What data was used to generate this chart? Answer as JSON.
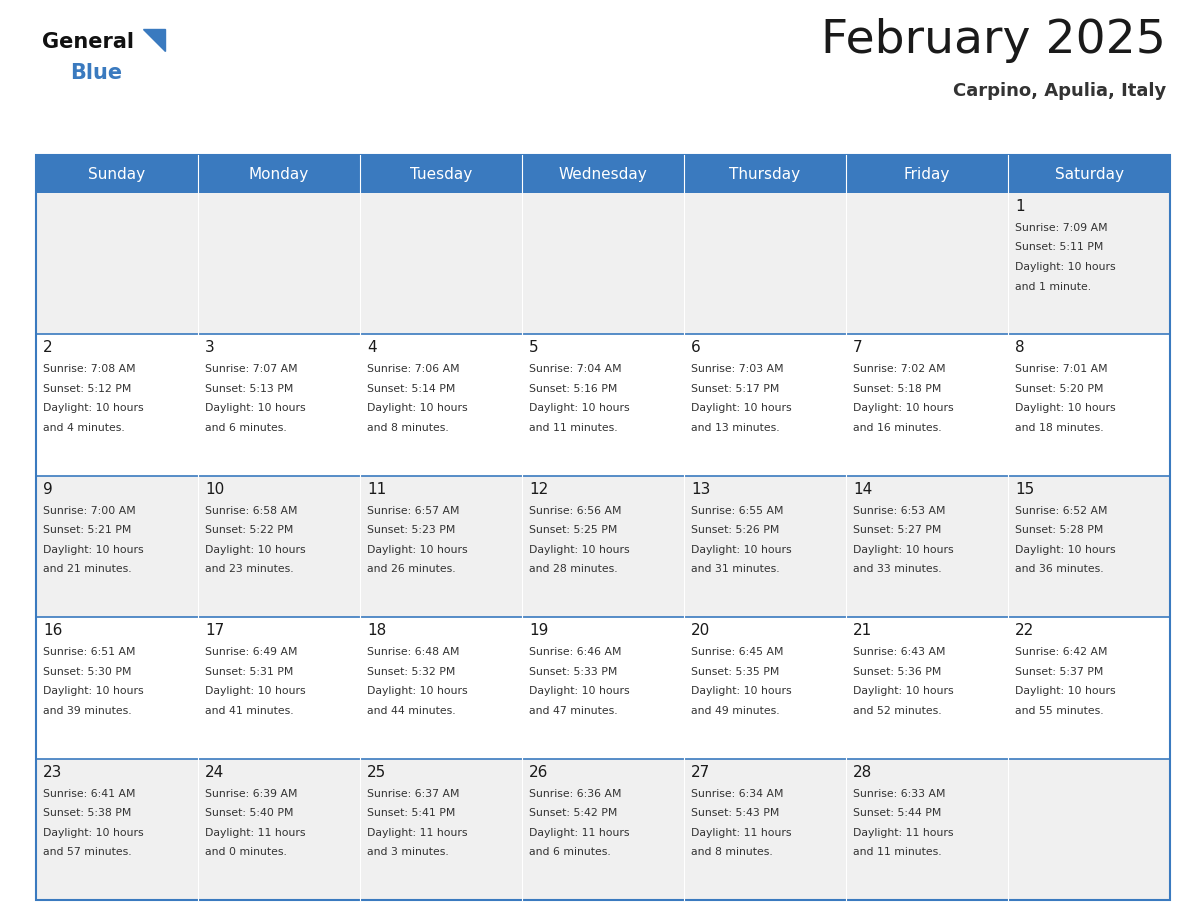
{
  "title": "February 2025",
  "subtitle": "Carpino, Apulia, Italy",
  "header_color": "#3a7abf",
  "header_text_color": "#ffffff",
  "cell_bg_even": "#f0f0f0",
  "cell_bg_odd": "#ffffff",
  "border_color": "#3a7abf",
  "days_of_week": [
    "Sunday",
    "Monday",
    "Tuesday",
    "Wednesday",
    "Thursday",
    "Friday",
    "Saturday"
  ],
  "title_color": "#1a1a1a",
  "subtitle_color": "#333333",
  "day_number_color": "#1a1a1a",
  "cell_text_color": "#333333",
  "calendar": [
    [
      null,
      null,
      null,
      null,
      null,
      null,
      {
        "day": 1,
        "sunrise": "7:09 AM",
        "sunset": "5:11 PM",
        "daylight": "10 hours",
        "daylight2": "and 1 minute."
      }
    ],
    [
      {
        "day": 2,
        "sunrise": "7:08 AM",
        "sunset": "5:12 PM",
        "daylight": "10 hours",
        "daylight2": "and 4 minutes."
      },
      {
        "day": 3,
        "sunrise": "7:07 AM",
        "sunset": "5:13 PM",
        "daylight": "10 hours",
        "daylight2": "and 6 minutes."
      },
      {
        "day": 4,
        "sunrise": "7:06 AM",
        "sunset": "5:14 PM",
        "daylight": "10 hours",
        "daylight2": "and 8 minutes."
      },
      {
        "day": 5,
        "sunrise": "7:04 AM",
        "sunset": "5:16 PM",
        "daylight": "10 hours",
        "daylight2": "and 11 minutes."
      },
      {
        "day": 6,
        "sunrise": "7:03 AM",
        "sunset": "5:17 PM",
        "daylight": "10 hours",
        "daylight2": "and 13 minutes."
      },
      {
        "day": 7,
        "sunrise": "7:02 AM",
        "sunset": "5:18 PM",
        "daylight": "10 hours",
        "daylight2": "and 16 minutes."
      },
      {
        "day": 8,
        "sunrise": "7:01 AM",
        "sunset": "5:20 PM",
        "daylight": "10 hours",
        "daylight2": "and 18 minutes."
      }
    ],
    [
      {
        "day": 9,
        "sunrise": "7:00 AM",
        "sunset": "5:21 PM",
        "daylight": "10 hours",
        "daylight2": "and 21 minutes."
      },
      {
        "day": 10,
        "sunrise": "6:58 AM",
        "sunset": "5:22 PM",
        "daylight": "10 hours",
        "daylight2": "and 23 minutes."
      },
      {
        "day": 11,
        "sunrise": "6:57 AM",
        "sunset": "5:23 PM",
        "daylight": "10 hours",
        "daylight2": "and 26 minutes."
      },
      {
        "day": 12,
        "sunrise": "6:56 AM",
        "sunset": "5:25 PM",
        "daylight": "10 hours",
        "daylight2": "and 28 minutes."
      },
      {
        "day": 13,
        "sunrise": "6:55 AM",
        "sunset": "5:26 PM",
        "daylight": "10 hours",
        "daylight2": "and 31 minutes."
      },
      {
        "day": 14,
        "sunrise": "6:53 AM",
        "sunset": "5:27 PM",
        "daylight": "10 hours",
        "daylight2": "and 33 minutes."
      },
      {
        "day": 15,
        "sunrise": "6:52 AM",
        "sunset": "5:28 PM",
        "daylight": "10 hours",
        "daylight2": "and 36 minutes."
      }
    ],
    [
      {
        "day": 16,
        "sunrise": "6:51 AM",
        "sunset": "5:30 PM",
        "daylight": "10 hours",
        "daylight2": "and 39 minutes."
      },
      {
        "day": 17,
        "sunrise": "6:49 AM",
        "sunset": "5:31 PM",
        "daylight": "10 hours",
        "daylight2": "and 41 minutes."
      },
      {
        "day": 18,
        "sunrise": "6:48 AM",
        "sunset": "5:32 PM",
        "daylight": "10 hours",
        "daylight2": "and 44 minutes."
      },
      {
        "day": 19,
        "sunrise": "6:46 AM",
        "sunset": "5:33 PM",
        "daylight": "10 hours",
        "daylight2": "and 47 minutes."
      },
      {
        "day": 20,
        "sunrise": "6:45 AM",
        "sunset": "5:35 PM",
        "daylight": "10 hours",
        "daylight2": "and 49 minutes."
      },
      {
        "day": 21,
        "sunrise": "6:43 AM",
        "sunset": "5:36 PM",
        "daylight": "10 hours",
        "daylight2": "and 52 minutes."
      },
      {
        "day": 22,
        "sunrise": "6:42 AM",
        "sunset": "5:37 PM",
        "daylight": "10 hours",
        "daylight2": "and 55 minutes."
      }
    ],
    [
      {
        "day": 23,
        "sunrise": "6:41 AM",
        "sunset": "5:38 PM",
        "daylight": "10 hours",
        "daylight2": "and 57 minutes."
      },
      {
        "day": 24,
        "sunrise": "6:39 AM",
        "sunset": "5:40 PM",
        "daylight": "11 hours",
        "daylight2": "and 0 minutes."
      },
      {
        "day": 25,
        "sunrise": "6:37 AM",
        "sunset": "5:41 PM",
        "daylight": "11 hours",
        "daylight2": "and 3 minutes."
      },
      {
        "day": 26,
        "sunrise": "6:36 AM",
        "sunset": "5:42 PM",
        "daylight": "11 hours",
        "daylight2": "and 6 minutes."
      },
      {
        "day": 27,
        "sunrise": "6:34 AM",
        "sunset": "5:43 PM",
        "daylight": "11 hours",
        "daylight2": "and 8 minutes."
      },
      {
        "day": 28,
        "sunrise": "6:33 AM",
        "sunset": "5:44 PM",
        "daylight": "11 hours",
        "daylight2": "and 11 minutes."
      },
      null
    ]
  ]
}
